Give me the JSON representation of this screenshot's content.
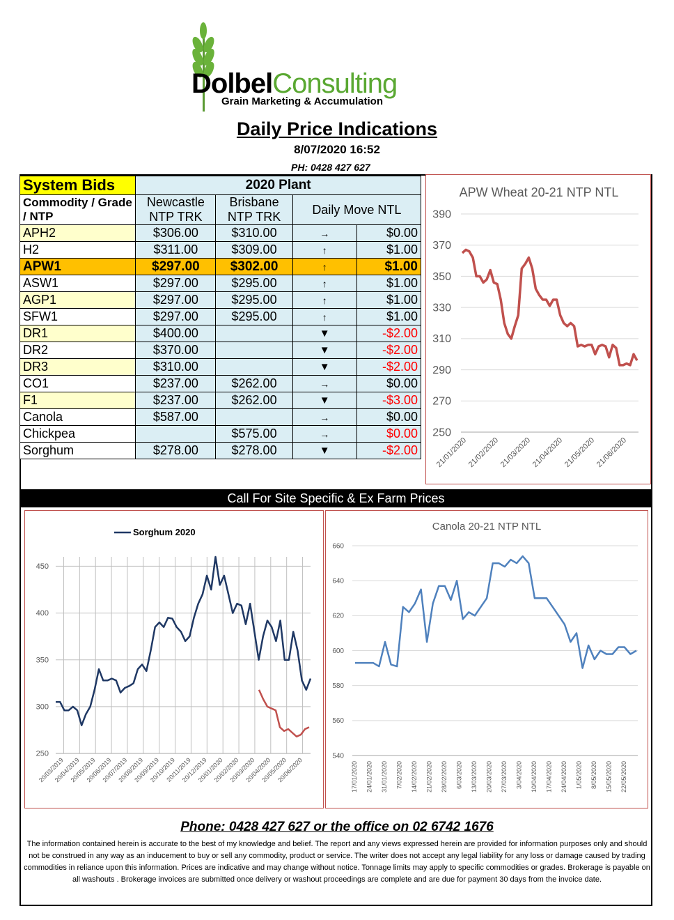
{
  "brand": {
    "name_part1": "Dolbel",
    "name_part2": "Consulting",
    "tagline": "Grain Marketing & Accumulation"
  },
  "header": {
    "title": "Daily Price Indications",
    "datetime": "8/07/2020 16:52",
    "phone": "PH: 0428 427 627"
  },
  "table": {
    "system_bids": "System Bids",
    "plant": "2020 Plant",
    "col_commodity": "Commodity / Grade / NTP",
    "col_newcastle": "Newcastle NTP TRK",
    "col_brisbane": "Brisbane NTP TRK",
    "col_move": "Daily  Move NTL",
    "rows": [
      {
        "grade": "APH2",
        "newcastle": "$306.00",
        "brisbane": "$310.00",
        "arrow": "→",
        "move": "$0.00",
        "neg": false
      },
      {
        "grade": "H2",
        "newcastle": "$311.00",
        "brisbane": "$309.00",
        "arrow": "↑",
        "move": "$1.00",
        "neg": false
      },
      {
        "grade": "APW1",
        "newcastle": "$297.00",
        "brisbane": "$302.00",
        "arrow": "↑",
        "move": "$1.00",
        "neg": false
      },
      {
        "grade": "ASW1",
        "newcastle": "$297.00",
        "brisbane": "$295.00",
        "arrow": "↑",
        "move": "$1.00",
        "neg": false
      },
      {
        "grade": "AGP1",
        "newcastle": "$297.00",
        "brisbane": "$295.00",
        "arrow": "↑",
        "move": "$1.00",
        "neg": false
      },
      {
        "grade": "SFW1",
        "newcastle": "$297.00",
        "brisbane": "$295.00",
        "arrow": "↑",
        "move": "$1.00",
        "neg": false
      },
      {
        "grade": "DR1",
        "newcastle": "$400.00",
        "brisbane": "",
        "arrow": "▼",
        "move": "-$2.00",
        "neg": true
      },
      {
        "grade": "DR2",
        "newcastle": "$370.00",
        "brisbane": "",
        "arrow": "▼",
        "move": "-$2.00",
        "neg": true
      },
      {
        "grade": "DR3",
        "newcastle": "$310.00",
        "brisbane": "",
        "arrow": "▼",
        "move": "-$2.00",
        "neg": true
      },
      {
        "grade": "CO1",
        "newcastle": "$237.00",
        "brisbane": "$262.00",
        "arrow": "→",
        "move": "$0.00",
        "neg": false
      },
      {
        "grade": "F1",
        "newcastle": "$237.00",
        "brisbane": "$262.00",
        "arrow": "▼",
        "move": "-$3.00",
        "neg": true
      },
      {
        "grade": "Canola",
        "newcastle": "$587.00",
        "brisbane": "",
        "arrow": "→",
        "move": "$0.00",
        "neg": false
      },
      {
        "grade": "Chickpea",
        "newcastle": "",
        "brisbane": "$575.00",
        "arrow": "→",
        "move": "$0.00",
        "neg": true
      },
      {
        "grade": "Sorghum",
        "newcastle": "$278.00",
        "brisbane": "$278.00",
        "arrow": "▼",
        "move": "-$2.00",
        "neg": true
      }
    ]
  },
  "call_bar": "Call For Site Specific & Ex Farm Prices",
  "footer": {
    "phone": "Phone: 0428 427 627 or the office on 02 6742 1676",
    "disclaimer": "The information contained herein is accurate to the best of my knowledge and belief.  The report and any views expressed herein are provided for information purposes only and should not be construed in any way as an inducement to buy or sell any commodity, product or service. The writer does not accept any legal liability for any loss or damage caused by trading commodities in reliance upon this information. Prices are indicative and may change without notice. Tonnage limits may apply to specific commodities or grades.  Brokerage is payable on all washouts . Brokerage invoices are submitted once delivery or washout proceedings are complete and are due for payment 30 days from the invoice date."
  },
  "chart_data": [
    {
      "type": "line",
      "title": "APW Wheat 20-21 NTP NTL",
      "xlabel": "",
      "ylabel": "",
      "ylim": [
        250,
        390
      ],
      "yticks": [
        250,
        270,
        290,
        310,
        330,
        350,
        370,
        390
      ],
      "xticks": [
        "21/01/2020",
        "21/02/2020",
        "21/03/2020",
        "21/04/2020",
        "21/05/2020",
        "21/06/2020"
      ],
      "grid": true,
      "color": "#c0504d",
      "series": [
        {
          "values": [
            365,
            367,
            366,
            362,
            350,
            350,
            346,
            348,
            354,
            346,
            345,
            335,
            320,
            313,
            310,
            318,
            325,
            355,
            358,
            362,
            355,
            342,
            338,
            335,
            335,
            331,
            335,
            335,
            325,
            320,
            318,
            320,
            318,
            305,
            306,
            305,
            306,
            306,
            300,
            305,
            306,
            305,
            298,
            306,
            304,
            293,
            293,
            294,
            293,
            300,
            296
          ]
        }
      ]
    },
    {
      "type": "line",
      "title": "",
      "legend": "top-left",
      "ylim": [
        250,
        460
      ],
      "yticks": [
        250,
        300,
        350,
        400,
        450
      ],
      "xticks": [
        "20/03/2019",
        "20/04/2019",
        "20/05/2019",
        "20/06/2019",
        "20/07/2019",
        "20/08/2019",
        "20/09/2019",
        "20/10/2019",
        "20/11/2019",
        "20/12/2019",
        "20/01/2020",
        "20/02/2020",
        "20/03/2020",
        "20/04/2020",
        "20/05/2020",
        "20/06/2020"
      ],
      "grid": true,
      "series": [
        {
          "name": "Sorghum 2020",
          "color": "#1f3864",
          "values": [
            305,
            305,
            296,
            296,
            300,
            296,
            280,
            292,
            300,
            318,
            340,
            328,
            328,
            330,
            328,
            315,
            320,
            322,
            325,
            340,
            345,
            338,
            360,
            385,
            390,
            385,
            395,
            394,
            385,
            380,
            370,
            375,
            395,
            410,
            420,
            440,
            425,
            460,
            430,
            440,
            420,
            400,
            410,
            408,
            388,
            410,
            380,
            350,
            375,
            392,
            385,
            370,
            392,
            350,
            350,
            380,
            360,
            328,
            318,
            330
          ]
        },
        {
          "name": "",
          "color": "#c0504d",
          "values": [
            318,
            308,
            300,
            298,
            296,
            278,
            274,
            276,
            272,
            268,
            270,
            276,
            278
          ]
        }
      ]
    },
    {
      "type": "line",
      "title": "Canola 20-21 NTP NTL",
      "ylim": [
        540,
        660
      ],
      "yticks": [
        540,
        560,
        580,
        600,
        620,
        640,
        660
      ],
      "xticks": [
        "17/01/2020",
        "24/01/2020",
        "31/01/2020",
        "7/02/2020",
        "14/02/2020",
        "21/02/2020",
        "28/02/2020",
        "6/03/2020",
        "13/03/2020",
        "20/03/2020",
        "27/03/2020",
        "3/04/2020",
        "10/04/2020",
        "17/04/2020",
        "24/04/2020",
        "1/05/2020",
        "8/05/2020",
        "15/05/2020",
        "22/05/2020"
      ],
      "grid": true,
      "color": "#4f81bd",
      "series": [
        {
          "values": [
            593,
            593,
            593,
            593,
            591,
            605,
            592,
            591,
            625,
            622,
            627,
            635,
            605,
            627,
            637,
            637,
            629,
            640,
            618,
            622,
            620,
            625,
            630,
            650,
            650,
            648,
            652,
            650,
            654,
            650,
            630,
            630,
            630,
            625,
            620,
            615,
            605,
            610,
            590,
            603,
            595,
            600,
            598,
            598,
            602,
            602,
            598,
            600
          ]
        }
      ]
    }
  ]
}
